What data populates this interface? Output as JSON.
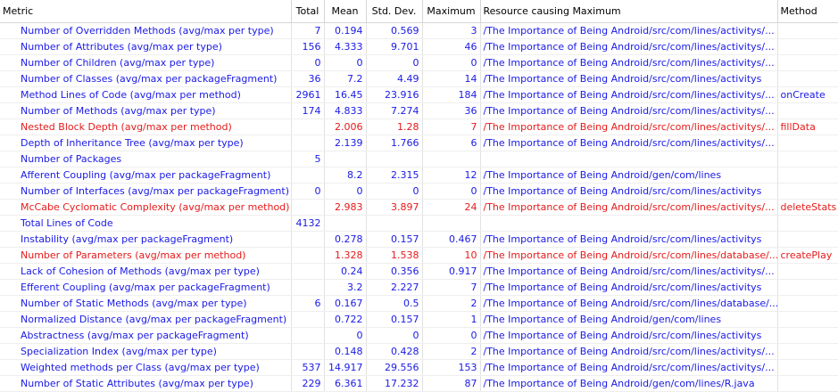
{
  "columns": [
    "Metric",
    "Total",
    "Mean",
    "Std. Dev.",
    "Maximum",
    "Resource causing Maximum",
    "Method"
  ],
  "colors": {
    "normal": "#1a1ae6",
    "warning": "#e61a1a",
    "header": "#000000"
  },
  "rows": [
    {
      "status": "normal",
      "metric": "Number of Overridden Methods (avg/max per type)",
      "total": "7",
      "mean": "0.194",
      "stddev": "0.569",
      "maximum": "3",
      "resource": "/The Importance of Being Android/src/com/lines/activitys/...",
      "method": ""
    },
    {
      "status": "normal",
      "metric": "Number of Attributes (avg/max per type)",
      "total": "156",
      "mean": "4.333",
      "stddev": "9.701",
      "maximum": "46",
      "resource": "/The Importance of Being Android/src/com/lines/activitys/...",
      "method": ""
    },
    {
      "status": "normal",
      "metric": "Number of Children (avg/max per type)",
      "total": "0",
      "mean": "0",
      "stddev": "0",
      "maximum": "0",
      "resource": "/The Importance of Being Android/src/com/lines/activitys/...",
      "method": ""
    },
    {
      "status": "normal",
      "metric": "Number of Classes (avg/max per packageFragment)",
      "total": "36",
      "mean": "7.2",
      "stddev": "4.49",
      "maximum": "14",
      "resource": "/The Importance of Being Android/src/com/lines/activitys",
      "method": ""
    },
    {
      "status": "normal",
      "metric": "Method Lines of Code (avg/max per method)",
      "total": "2961",
      "mean": "16.45",
      "stddev": "23.916",
      "maximum": "184",
      "resource": "/The Importance of Being Android/src/com/lines/activitys/...",
      "method": "onCreate"
    },
    {
      "status": "normal",
      "metric": "Number of Methods (avg/max per type)",
      "total": "174",
      "mean": "4.833",
      "stddev": "7.274",
      "maximum": "36",
      "resource": "/The Importance of Being Android/src/com/lines/activitys/...",
      "method": ""
    },
    {
      "status": "warning",
      "metric": "Nested Block Depth (avg/max per method)",
      "total": "",
      "mean": "2.006",
      "stddev": "1.28",
      "maximum": "7",
      "resource": "/The Importance of Being Android/src/com/lines/activitys/...",
      "method": "fillData"
    },
    {
      "status": "normal",
      "metric": "Depth of Inheritance Tree (avg/max per type)",
      "total": "",
      "mean": "2.139",
      "stddev": "1.766",
      "maximum": "6",
      "resource": "/The Importance of Being Android/src/com/lines/activitys/...",
      "method": ""
    },
    {
      "status": "normal",
      "metric": "Number of Packages",
      "total": "5",
      "mean": "",
      "stddev": "",
      "maximum": "",
      "resource": "",
      "method": ""
    },
    {
      "status": "normal",
      "metric": "Afferent Coupling (avg/max per packageFragment)",
      "total": "",
      "mean": "8.2",
      "stddev": "2.315",
      "maximum": "12",
      "resource": "/The Importance of Being Android/gen/com/lines",
      "method": ""
    },
    {
      "status": "normal",
      "metric": "Number of Interfaces (avg/max per packageFragment)",
      "total": "0",
      "mean": "0",
      "stddev": "0",
      "maximum": "0",
      "resource": "/The Importance of Being Android/src/com/lines/activitys",
      "method": ""
    },
    {
      "status": "warning",
      "metric": "McCabe Cyclomatic Complexity (avg/max per method)",
      "total": "",
      "mean": "2.983",
      "stddev": "3.897",
      "maximum": "24",
      "resource": "/The Importance of Being Android/src/com/lines/activitys/...",
      "method": "deleteStats"
    },
    {
      "status": "normal",
      "metric": "Total Lines of Code",
      "total": "4132",
      "mean": "",
      "stddev": "",
      "maximum": "",
      "resource": "",
      "method": ""
    },
    {
      "status": "normal",
      "metric": "Instability (avg/max per packageFragment)",
      "total": "",
      "mean": "0.278",
      "stddev": "0.157",
      "maximum": "0.467",
      "resource": "/The Importance of Being Android/src/com/lines/activitys",
      "method": ""
    },
    {
      "status": "warning",
      "metric": "Number of Parameters (avg/max per method)",
      "total": "",
      "mean": "1.328",
      "stddev": "1.538",
      "maximum": "10",
      "resource": "/The Importance of Being Android/src/com/lines/database/...",
      "method": "createPlay"
    },
    {
      "status": "normal",
      "metric": "Lack of Cohesion of Methods (avg/max per type)",
      "total": "",
      "mean": "0.24",
      "stddev": "0.356",
      "maximum": "0.917",
      "resource": "/The Importance of Being Android/src/com/lines/activitys/...",
      "method": ""
    },
    {
      "status": "normal",
      "metric": "Efferent Coupling (avg/max per packageFragment)",
      "total": "",
      "mean": "3.2",
      "stddev": "2.227",
      "maximum": "7",
      "resource": "/The Importance of Being Android/src/com/lines/activitys",
      "method": ""
    },
    {
      "status": "normal",
      "metric": "Number of Static Methods (avg/max per type)",
      "total": "6",
      "mean": "0.167",
      "stddev": "0.5",
      "maximum": "2",
      "resource": "/The Importance of Being Android/src/com/lines/database/...",
      "method": ""
    },
    {
      "status": "normal",
      "metric": "Normalized Distance (avg/max per packageFragment)",
      "total": "",
      "mean": "0.722",
      "stddev": "0.157",
      "maximum": "1",
      "resource": "/The Importance of Being Android/gen/com/lines",
      "method": ""
    },
    {
      "status": "normal",
      "metric": "Abstractness (avg/max per packageFragment)",
      "total": "",
      "mean": "0",
      "stddev": "0",
      "maximum": "0",
      "resource": "/The Importance of Being Android/src/com/lines/activitys",
      "method": ""
    },
    {
      "status": "normal",
      "metric": "Specialization Index (avg/max per type)",
      "total": "",
      "mean": "0.148",
      "stddev": "0.428",
      "maximum": "2",
      "resource": "/The Importance of Being Android/src/com/lines/activitys/...",
      "method": ""
    },
    {
      "status": "normal",
      "metric": "Weighted methods per Class (avg/max per type)",
      "total": "537",
      "mean": "14.917",
      "stddev": "29.556",
      "maximum": "153",
      "resource": "/The Importance of Being Android/src/com/lines/activitys/...",
      "method": ""
    },
    {
      "status": "normal",
      "metric": "Number of Static Attributes (avg/max per type)",
      "total": "229",
      "mean": "6.361",
      "stddev": "17.232",
      "maximum": "87",
      "resource": "/The Importance of Being Android/gen/com/lines/R.java",
      "method": ""
    }
  ]
}
